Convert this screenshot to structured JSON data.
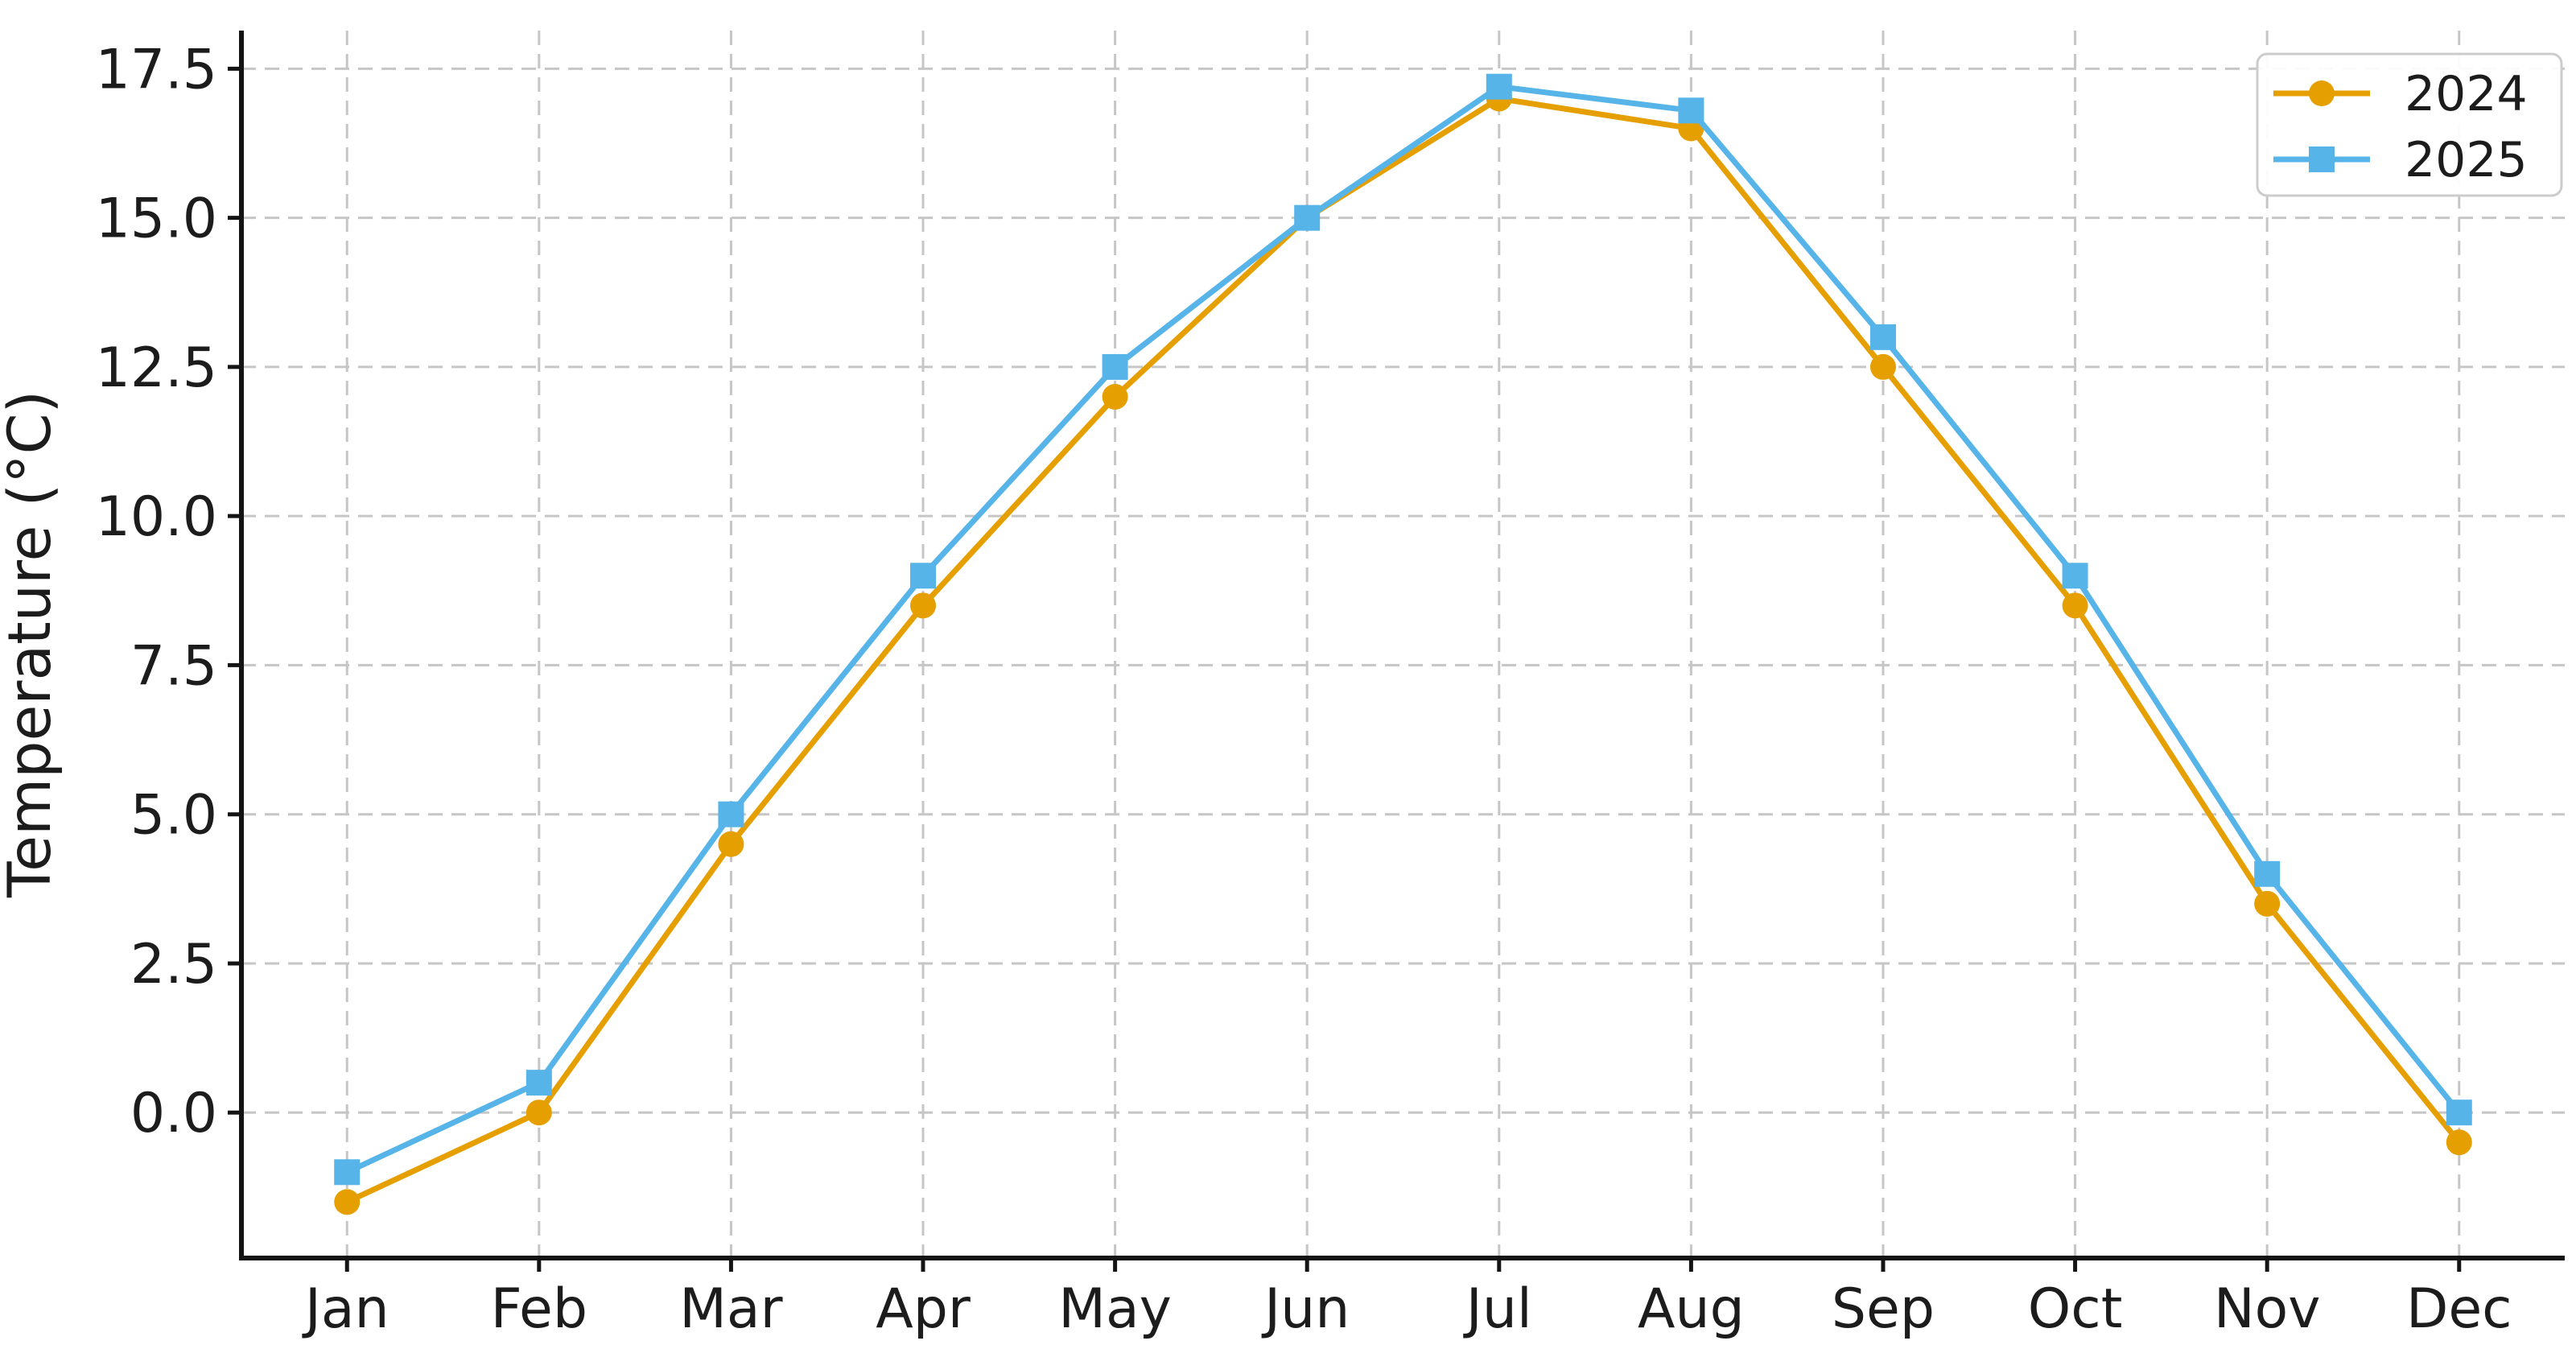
{
  "chart_data": {
    "type": "line",
    "title": "",
    "xlabel": "",
    "ylabel": "Temperature (°C)",
    "categories": [
      "Jan",
      "Feb",
      "Mar",
      "Apr",
      "May",
      "Jun",
      "Jul",
      "Aug",
      "Sep",
      "Oct",
      "Nov",
      "Dec"
    ],
    "series": [
      {
        "name": "2024",
        "color": "#E69F00",
        "marker": "circle",
        "values": [
          -1.5,
          0.0,
          4.5,
          8.5,
          12.0,
          15.0,
          17.0,
          16.5,
          12.5,
          8.5,
          3.5,
          -0.5
        ]
      },
      {
        "name": "2025",
        "color": "#56B4E9",
        "marker": "square",
        "values": [
          -1.0,
          0.5,
          5.0,
          9.0,
          12.5,
          15.0,
          17.2,
          16.8,
          13.0,
          9.0,
          4.0,
          0.0
        ]
      }
    ],
    "yticks": [
      0.0,
      2.5,
      5.0,
      7.5,
      10.0,
      12.5,
      15.0,
      17.5
    ],
    "ytick_labels": [
      "0.0",
      "2.5",
      "5.0",
      "7.5",
      "10.0",
      "12.5",
      "15.0",
      "17.5"
    ],
    "ylim": [
      -2.44,
      18.14
    ],
    "grid": true,
    "grid_style": "dashed",
    "legend_position": "upper right",
    "legend_labels": [
      "2024",
      "2025"
    ]
  },
  "colors": {
    "background": "#ffffff",
    "grid": "#c6c6c6",
    "spine": "#141414",
    "text": "#1c1c1c",
    "legend_border": "#cccccc",
    "legend_background": "#ffffff"
  }
}
